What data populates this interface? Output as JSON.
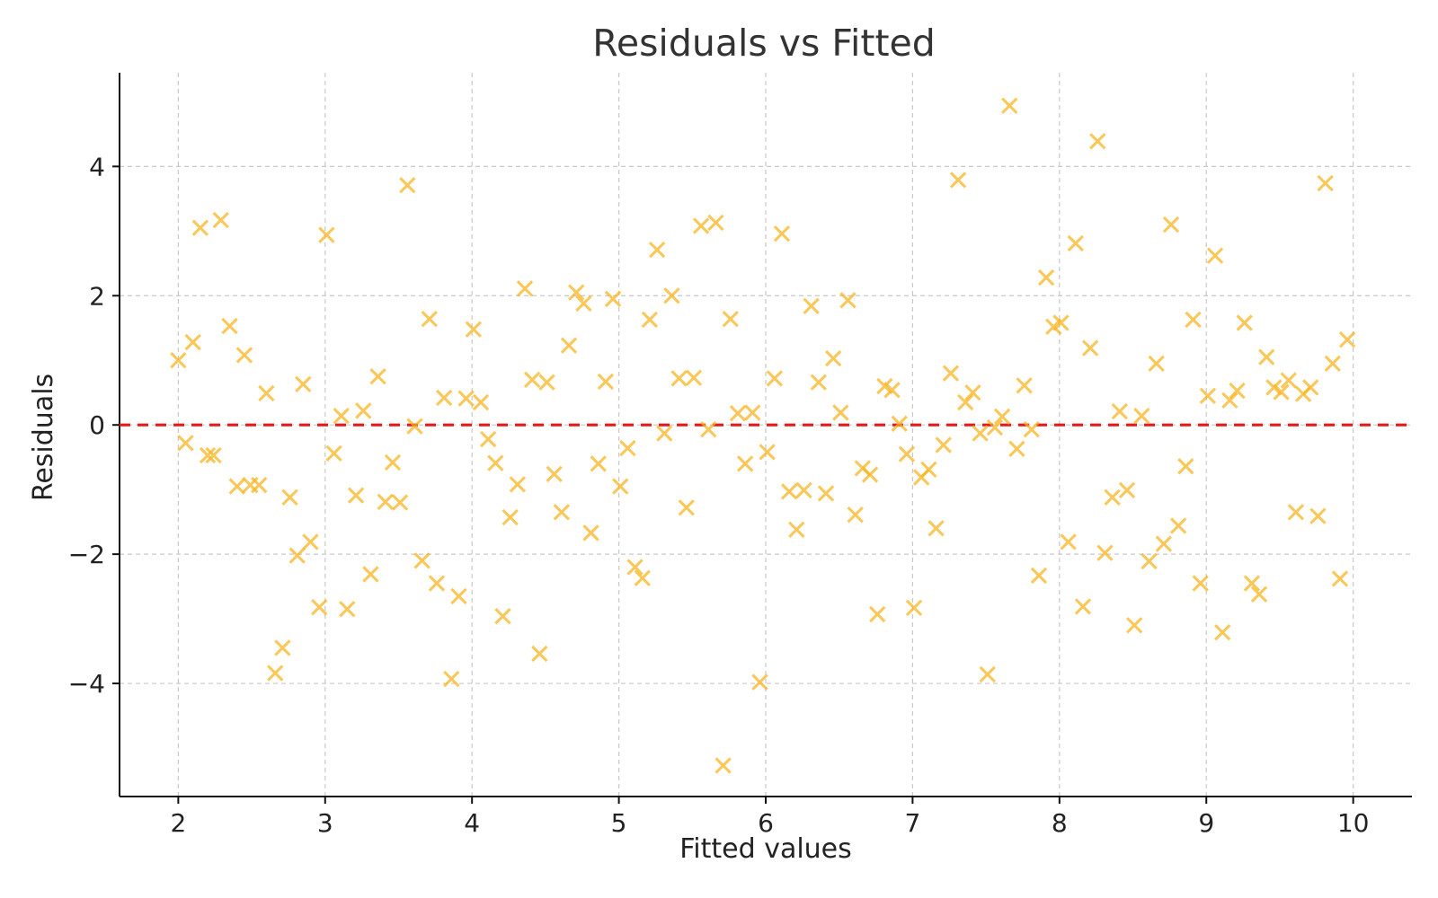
{
  "chart_data": {
    "type": "scatter",
    "title": "Residuals vs Fitted",
    "xlabel": "Fitted values",
    "ylabel": "Residuals",
    "xlim": [
      1.6,
      10.4
    ],
    "ylim": [
      -5.75,
      5.45
    ],
    "x_ticks": [
      2,
      3,
      4,
      5,
      6,
      7,
      8,
      9,
      10
    ],
    "x_tick_labels": [
      "2",
      "3",
      "4",
      "5",
      "6",
      "7",
      "8",
      "9",
      "10"
    ],
    "y_ticks": [
      -4,
      -2,
      0,
      2,
      4
    ],
    "y_tick_labels": [
      "−4",
      "−2",
      "0",
      "2",
      "4"
    ],
    "grid": true,
    "reference_line": {
      "y": 0,
      "style": "dashed",
      "color": "#e31a1c"
    },
    "marker": {
      "shape": "x",
      "color": "#f9b31c",
      "opacity": 0.72
    },
    "series": [
      {
        "points": [
          {
            "x": 2.0,
            "y": 1.0
          },
          {
            "x": 2.05,
            "y": -0.28
          },
          {
            "x": 2.1,
            "y": 1.28
          },
          {
            "x": 2.15,
            "y": 3.05
          },
          {
            "x": 2.2,
            "y": -0.47
          },
          {
            "x": 2.24,
            "y": -0.47
          },
          {
            "x": 2.29,
            "y": 3.17
          },
          {
            "x": 2.35,
            "y": 1.53
          },
          {
            "x": 2.4,
            "y": -0.95
          },
          {
            "x": 2.45,
            "y": 1.08
          },
          {
            "x": 2.49,
            "y": -0.93
          },
          {
            "x": 2.55,
            "y": -0.93
          },
          {
            "x": 2.6,
            "y": 0.49
          },
          {
            "x": 2.66,
            "y": -3.84
          },
          {
            "x": 2.71,
            "y": -3.45
          },
          {
            "x": 2.76,
            "y": -1.12
          },
          {
            "x": 2.81,
            "y": -2.02
          },
          {
            "x": 2.85,
            "y": 0.63
          },
          {
            "x": 2.9,
            "y": -1.81
          },
          {
            "x": 2.96,
            "y": -2.82
          },
          {
            "x": 3.01,
            "y": 2.94
          },
          {
            "x": 3.06,
            "y": -0.44
          },
          {
            "x": 3.11,
            "y": 0.14
          },
          {
            "x": 3.15,
            "y": -2.85
          },
          {
            "x": 3.21,
            "y": -1.09
          },
          {
            "x": 3.26,
            "y": 0.22
          },
          {
            "x": 3.31,
            "y": -2.31
          },
          {
            "x": 3.36,
            "y": 0.75
          },
          {
            "x": 3.41,
            "y": -1.19
          },
          {
            "x": 3.46,
            "y": -0.58
          },
          {
            "x": 3.51,
            "y": -1.2
          },
          {
            "x": 3.56,
            "y": 3.71
          },
          {
            "x": 3.61,
            "y": -0.02
          },
          {
            "x": 3.66,
            "y": -2.1
          },
          {
            "x": 3.71,
            "y": 1.64
          },
          {
            "x": 3.76,
            "y": -2.45
          },
          {
            "x": 3.81,
            "y": 0.42
          },
          {
            "x": 3.86,
            "y": -3.93
          },
          {
            "x": 3.91,
            "y": -2.65
          },
          {
            "x": 3.96,
            "y": 0.41
          },
          {
            "x": 4.01,
            "y": 1.48
          },
          {
            "x": 4.06,
            "y": 0.35
          },
          {
            "x": 4.11,
            "y": -0.22
          },
          {
            "x": 4.16,
            "y": -0.59
          },
          {
            "x": 4.21,
            "y": -2.96
          },
          {
            "x": 4.26,
            "y": -1.43
          },
          {
            "x": 4.31,
            "y": -0.92
          },
          {
            "x": 4.36,
            "y": 2.11
          },
          {
            "x": 4.41,
            "y": 0.7
          },
          {
            "x": 4.46,
            "y": -3.54
          },
          {
            "x": 4.51,
            "y": 0.66
          },
          {
            "x": 4.56,
            "y": -0.76
          },
          {
            "x": 4.61,
            "y": -1.35
          },
          {
            "x": 4.66,
            "y": 1.23
          },
          {
            "x": 4.71,
            "y": 2.05
          },
          {
            "x": 4.76,
            "y": 1.88
          },
          {
            "x": 4.81,
            "y": -1.67
          },
          {
            "x": 4.86,
            "y": -0.6
          },
          {
            "x": 4.91,
            "y": 0.67
          },
          {
            "x": 4.96,
            "y": 1.95
          },
          {
            "x": 5.01,
            "y": -0.95
          },
          {
            "x": 5.06,
            "y": -0.36
          },
          {
            "x": 5.11,
            "y": -2.2
          },
          {
            "x": 5.16,
            "y": -2.37
          },
          {
            "x": 5.21,
            "y": 1.63
          },
          {
            "x": 5.26,
            "y": 2.71
          },
          {
            "x": 5.31,
            "y": -0.13
          },
          {
            "x": 5.36,
            "y": 2.0
          },
          {
            "x": 5.41,
            "y": 0.72
          },
          {
            "x": 5.46,
            "y": -1.28
          },
          {
            "x": 5.51,
            "y": 0.73
          },
          {
            "x": 5.56,
            "y": 3.08
          },
          {
            "x": 5.61,
            "y": -0.07
          },
          {
            "x": 5.66,
            "y": 3.13
          },
          {
            "x": 5.71,
            "y": -5.27
          },
          {
            "x": 5.76,
            "y": 1.64
          },
          {
            "x": 5.81,
            "y": 0.18
          },
          {
            "x": 5.86,
            "y": -0.6
          },
          {
            "x": 5.91,
            "y": 0.19
          },
          {
            "x": 5.96,
            "y": -3.98
          },
          {
            "x": 6.01,
            "y": -0.42
          },
          {
            "x": 6.06,
            "y": 0.72
          },
          {
            "x": 6.11,
            "y": 2.96
          },
          {
            "x": 6.16,
            "y": -1.03
          },
          {
            "x": 6.21,
            "y": -1.62
          },
          {
            "x": 6.26,
            "y": -1.01
          },
          {
            "x": 6.31,
            "y": 1.84
          },
          {
            "x": 6.36,
            "y": 0.66
          },
          {
            "x": 6.41,
            "y": -1.06
          },
          {
            "x": 6.46,
            "y": 1.03
          },
          {
            "x": 6.51,
            "y": 0.19
          },
          {
            "x": 6.56,
            "y": 1.93
          },
          {
            "x": 6.61,
            "y": -1.39
          },
          {
            "x": 6.66,
            "y": -0.67
          },
          {
            "x": 6.71,
            "y": -0.77
          },
          {
            "x": 6.76,
            "y": -2.93
          },
          {
            "x": 6.81,
            "y": 0.6
          },
          {
            "x": 6.86,
            "y": 0.54
          },
          {
            "x": 6.91,
            "y": 0.02
          },
          {
            "x": 6.96,
            "y": -0.45
          },
          {
            "x": 7.01,
            "y": -2.83
          },
          {
            "x": 7.06,
            "y": -0.81
          },
          {
            "x": 7.11,
            "y": -0.69
          },
          {
            "x": 7.16,
            "y": -1.6
          },
          {
            "x": 7.21,
            "y": -0.31
          },
          {
            "x": 7.26,
            "y": 0.8
          },
          {
            "x": 7.31,
            "y": 3.79
          },
          {
            "x": 7.36,
            "y": 0.35
          },
          {
            "x": 7.41,
            "y": 0.5
          },
          {
            "x": 7.46,
            "y": -0.13
          },
          {
            "x": 7.51,
            "y": -3.86
          },
          {
            "x": 7.56,
            "y": -0.04
          },
          {
            "x": 7.61,
            "y": 0.13
          },
          {
            "x": 7.66,
            "y": 4.94
          },
          {
            "x": 7.71,
            "y": -0.37
          },
          {
            "x": 7.76,
            "y": 0.61
          },
          {
            "x": 7.81,
            "y": -0.07
          },
          {
            "x": 7.86,
            "y": -2.33
          },
          {
            "x": 7.91,
            "y": 2.28
          },
          {
            "x": 7.96,
            "y": 1.52
          },
          {
            "x": 8.01,
            "y": 1.58
          },
          {
            "x": 8.06,
            "y": -1.81
          },
          {
            "x": 8.11,
            "y": 2.81
          },
          {
            "x": 8.16,
            "y": -2.81
          },
          {
            "x": 8.21,
            "y": 1.19
          },
          {
            "x": 8.26,
            "y": 4.39
          },
          {
            "x": 8.31,
            "y": -1.98
          },
          {
            "x": 8.36,
            "y": -1.12
          },
          {
            "x": 8.41,
            "y": 0.21
          },
          {
            "x": 8.46,
            "y": -1.01
          },
          {
            "x": 8.51,
            "y": -3.1
          },
          {
            "x": 8.56,
            "y": 0.14
          },
          {
            "x": 8.61,
            "y": -2.11
          },
          {
            "x": 8.66,
            "y": 0.95
          },
          {
            "x": 8.71,
            "y": -1.84
          },
          {
            "x": 8.76,
            "y": 3.1
          },
          {
            "x": 8.81,
            "y": -1.56
          },
          {
            "x": 8.86,
            "y": -0.64
          },
          {
            "x": 8.91,
            "y": 1.63
          },
          {
            "x": 8.96,
            "y": -2.45
          },
          {
            "x": 9.01,
            "y": 0.45
          },
          {
            "x": 9.06,
            "y": 2.62
          },
          {
            "x": 9.11,
            "y": -3.21
          },
          {
            "x": 9.16,
            "y": 0.38
          },
          {
            "x": 9.21,
            "y": 0.53
          },
          {
            "x": 9.26,
            "y": 1.58
          },
          {
            "x": 9.31,
            "y": -2.45
          },
          {
            "x": 9.36,
            "y": -2.62
          },
          {
            "x": 9.41,
            "y": 1.05
          },
          {
            "x": 9.46,
            "y": 0.58
          },
          {
            "x": 9.51,
            "y": 0.51
          },
          {
            "x": 9.56,
            "y": 0.69
          },
          {
            "x": 9.61,
            "y": -1.35
          },
          {
            "x": 9.66,
            "y": 0.48
          },
          {
            "x": 9.71,
            "y": 0.58
          },
          {
            "x": 9.76,
            "y": -1.41
          },
          {
            "x": 9.81,
            "y": 3.74
          },
          {
            "x": 9.86,
            "y": 0.95
          },
          {
            "x": 9.91,
            "y": -2.38
          },
          {
            "x": 9.96,
            "y": 1.32
          }
        ]
      }
    ]
  }
}
